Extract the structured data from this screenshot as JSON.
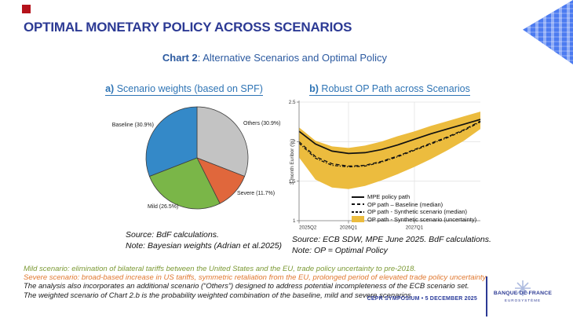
{
  "slide": {
    "title": "OPTIMAL MONETARY POLICY ACROSS SCENARIOS",
    "subtitle_prefix": "Chart 2",
    "subtitle_rest": ":  Alternative Scenarios and Optimal Policy",
    "event_footer": "CEPR SYMPOSIUM • 5 DECEMBER 2025",
    "logo": {
      "line1": "BANQUE DE FRANCE",
      "line2": "EUROSYSTÈME"
    },
    "accent_color": "#b5121b",
    "title_color": "#2c3a94",
    "panel_title_color": "#2e74b5"
  },
  "panel_a": {
    "title_prefix": "a)",
    "title_rest": " Scenario weights (based on SPF)",
    "source": "Source: BdF calculations.",
    "note": "Note: Bayesian weights (Adrian et al.2025)"
  },
  "panel_b": {
    "title_prefix": "b)",
    "title_rest": " Robust OP Path across Scenarios",
    "source": "Source: ECB SDW, MPE June 2025. BdF calculations.",
    "note": "Note: OP = Optimal Policy"
  },
  "notes": [
    {
      "text": "Mild scenario: elimination of bilateral tariffs between the United States and the EU, trade policy uncertainty to pre-2018.",
      "color": "#7c9a35"
    },
    {
      "text": "Severe scenario: broad-based increase in US tariffs, symmetric retaliation from the EU, prolonged period of elevated trade policy uncertainty.",
      "color": "#e07830"
    },
    {
      "text": "The analysis also incorporates an additional scenario (“Others”) designed to address potential incompleteness of the ECB scenario set.",
      "color": "#1a1a1a"
    },
    {
      "text": "The weighted scenario of Chart 2.b is the probability weighted combination of the baseline, mild and severe scenarios.",
      "color": "#1a1a1a"
    }
  ],
  "chart_data": [
    {
      "type": "pie",
      "title": "a) Scenario weights (based on SPF)",
      "start_angle_deg": 0,
      "direction": "clockwise",
      "slices": [
        {
          "label": "Others",
          "value": 30.9,
          "color": "#c3c3c3",
          "display": "Others (30.9%)"
        },
        {
          "label": "Severe",
          "value": 11.7,
          "color": "#e0673c",
          "display": "Severe (11.7%)"
        },
        {
          "label": "Mild",
          "value": 26.5,
          "color": "#7ab648",
          "display": "Mild (26.5%)"
        },
        {
          "label": "Baseline",
          "value": 30.9,
          "color": "#3489c8",
          "display": "Baseline (30.9%)"
        }
      ]
    },
    {
      "type": "line",
      "title": "b) Robust OP Path across Scenarios",
      "ylabel": "3-month Euribor (%)",
      "ylim": [
        1,
        2.5
      ],
      "yticks": [
        1,
        1.5,
        2,
        2.5
      ],
      "grid": true,
      "legend_position": "inside-bottom-right",
      "x": [
        "2025Q2",
        "2025Q3",
        "2025Q4",
        "2026Q1",
        "2026Q2",
        "2026Q3",
        "2026Q4",
        "2027Q1",
        "2027Q2",
        "2027Q3",
        "2027Q4",
        "2028Q1"
      ],
      "xtick_labels": [
        "2025Q2",
        "2026Q1",
        "2027Q1"
      ],
      "xtick_indices": [
        0,
        3,
        7
      ],
      "series": [
        {
          "name": "MPE policy path",
          "style": "solid",
          "color": "#111111",
          "values": [
            2.13,
            1.97,
            1.88,
            1.85,
            1.86,
            1.9,
            1.96,
            2.03,
            2.1,
            2.16,
            2.22,
            2.28
          ]
        },
        {
          "name": "OP path – Baseline (median)",
          "style": "dashed",
          "color": "#111111",
          "values": [
            2.0,
            1.81,
            1.72,
            1.69,
            1.7,
            1.75,
            1.82,
            1.9,
            1.98,
            2.06,
            2.15,
            2.26
          ]
        },
        {
          "name": "OP path - Synthetic scenario (median)",
          "style": "dashdot",
          "color": "#111111",
          "values": [
            1.98,
            1.79,
            1.7,
            1.68,
            1.69,
            1.74,
            1.81,
            1.89,
            1.97,
            2.05,
            2.14,
            2.25
          ]
        }
      ],
      "band": {
        "name": "OP path - Synthetic scenario (uncertainty)",
        "color": "#ecbc3e",
        "upper": [
          2.18,
          2.01,
          1.94,
          1.92,
          1.95,
          2.0,
          2.07,
          2.13,
          2.2,
          2.26,
          2.32,
          2.38
        ],
        "lower": [
          1.8,
          1.52,
          1.42,
          1.4,
          1.44,
          1.51,
          1.59,
          1.68,
          1.78,
          1.89,
          2.01,
          2.16
        ]
      }
    }
  ]
}
